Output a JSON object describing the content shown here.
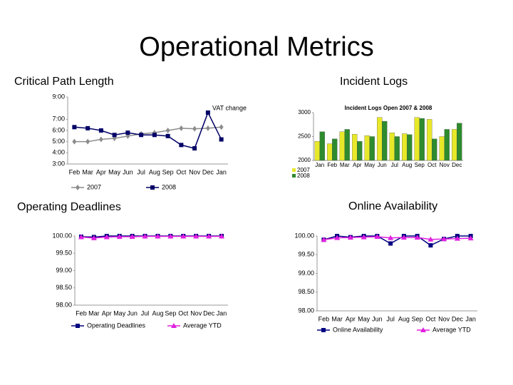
{
  "title": "Operational Metrics",
  "chart_data": [
    {
      "type": "line",
      "title": "Critical Path Length",
      "categories": [
        "Feb",
        "Mar",
        "Apr",
        "May",
        "Jun",
        "Jul",
        "Aug",
        "Sep",
        "Oct",
        "Nov",
        "Dec",
        "Jan"
      ],
      "series": [
        {
          "name": "2007",
          "color": "#8c8c8c",
          "marker": "diamond",
          "values": [
            5.0,
            5.0,
            5.2,
            5.3,
            5.5,
            5.7,
            5.8,
            6.0,
            6.2,
            6.15,
            6.2,
            6.3
          ]
        },
        {
          "name": "2008",
          "color": "#000066",
          "marker": "square",
          "values": [
            6.3,
            6.2,
            6.0,
            5.6,
            5.8,
            5.6,
            5.6,
            5.5,
            4.7,
            4.4,
            7.6,
            5.2
          ]
        }
      ],
      "ylim": [
        3,
        9
      ],
      "yticks": [
        {
          "value": 3,
          "label": "3:00"
        },
        {
          "value": 4,
          "label": "4:00"
        },
        {
          "value": 5,
          "label": "5:00"
        },
        {
          "value": 6,
          "label": "6:00"
        },
        {
          "value": 7,
          "label": "7:00"
        },
        {
          "value": 9,
          "label": "9:00"
        }
      ],
      "annotation": "VAT change"
    },
    {
      "type": "bar",
      "title": "Incident Logs",
      "subtitle": "Incident Logs Open 2007 & 2008",
      "categories": [
        "Jan",
        "Feb",
        "Mar",
        "Apr",
        "May",
        "Jun",
        "Jul",
        "Aug",
        "Sep",
        "Oct",
        "Nov",
        "Dec"
      ],
      "series": [
        {
          "name": "2007",
          "color": "#e8e82a",
          "values": [
            2400,
            2350,
            2600,
            2550,
            2520,
            2900,
            2580,
            2560,
            2900,
            2860,
            2500,
            2650
          ]
        },
        {
          "name": "2008",
          "color": "#2e8b2e",
          "values": [
            2600,
            2450,
            2650,
            2400,
            2500,
            2820,
            2500,
            2540,
            2880,
            2450,
            2650,
            2780
          ]
        }
      ],
      "ylim": [
        2000,
        3000
      ],
      "yticks": [
        2000,
        2500,
        3000
      ]
    },
    {
      "type": "line",
      "title": "Operating Deadlines",
      "categories": [
        "Feb",
        "Mar",
        "Apr",
        "May",
        "Jun",
        "Jul",
        "Aug",
        "Sep",
        "Oct",
        "Nov",
        "Dec",
        "Jan"
      ],
      "series": [
        {
          "name": "Operating Deadlines",
          "color": "#000080",
          "marker": "square",
          "values": [
            99.98,
            99.97,
            100,
            100,
            100,
            100,
            100,
            100,
            100,
            100,
            100,
            100
          ]
        },
        {
          "name": "Average YTD",
          "color": "#e020e0",
          "marker": "triangle",
          "values": [
            99.97,
            99.94,
            99.97,
            99.98,
            99.98,
            99.99,
            99.99,
            99.99,
            99.99,
            99.99,
            99.99,
            99.99
          ]
        }
      ],
      "ylim": [
        98,
        100
      ],
      "yticks": [
        {
          "value": 98,
          "label": "98.00"
        },
        {
          "value": 98.5,
          "label": "98.50"
        },
        {
          "value": 99,
          "label": "99.00"
        },
        {
          "value": 99.5,
          "label": "99.50"
        },
        {
          "value": 100,
          "label": "100.00"
        }
      ]
    },
    {
      "type": "line",
      "title": "Online Availability",
      "categories": [
        "Feb",
        "Mar",
        "Apr",
        "May",
        "Jun",
        "Jul",
        "Aug",
        "Sep",
        "Oct",
        "Nov",
        "Dec",
        "Jan"
      ],
      "series": [
        {
          "name": "Online Availability",
          "color": "#000080",
          "marker": "square",
          "values": [
            99.9,
            100,
            99.97,
            100,
            100,
            99.8,
            100,
            100,
            99.75,
            99.92,
            100,
            100
          ]
        },
        {
          "name": "Average YTD",
          "color": "#e020e0",
          "marker": "triangle",
          "values": [
            99.9,
            99.95,
            99.96,
            99.97,
            99.98,
            99.95,
            99.96,
            99.96,
            99.91,
            99.92,
            99.93,
            99.94
          ]
        }
      ],
      "ylim": [
        98,
        100
      ],
      "yticks": [
        {
          "value": 98,
          "label": "98.00"
        },
        {
          "value": 98.5,
          "label": "98.50"
        },
        {
          "value": 99,
          "label": "99.00"
        },
        {
          "value": 99.5,
          "label": "99.50"
        },
        {
          "value": 100,
          "label": "100.00"
        }
      ]
    }
  ]
}
